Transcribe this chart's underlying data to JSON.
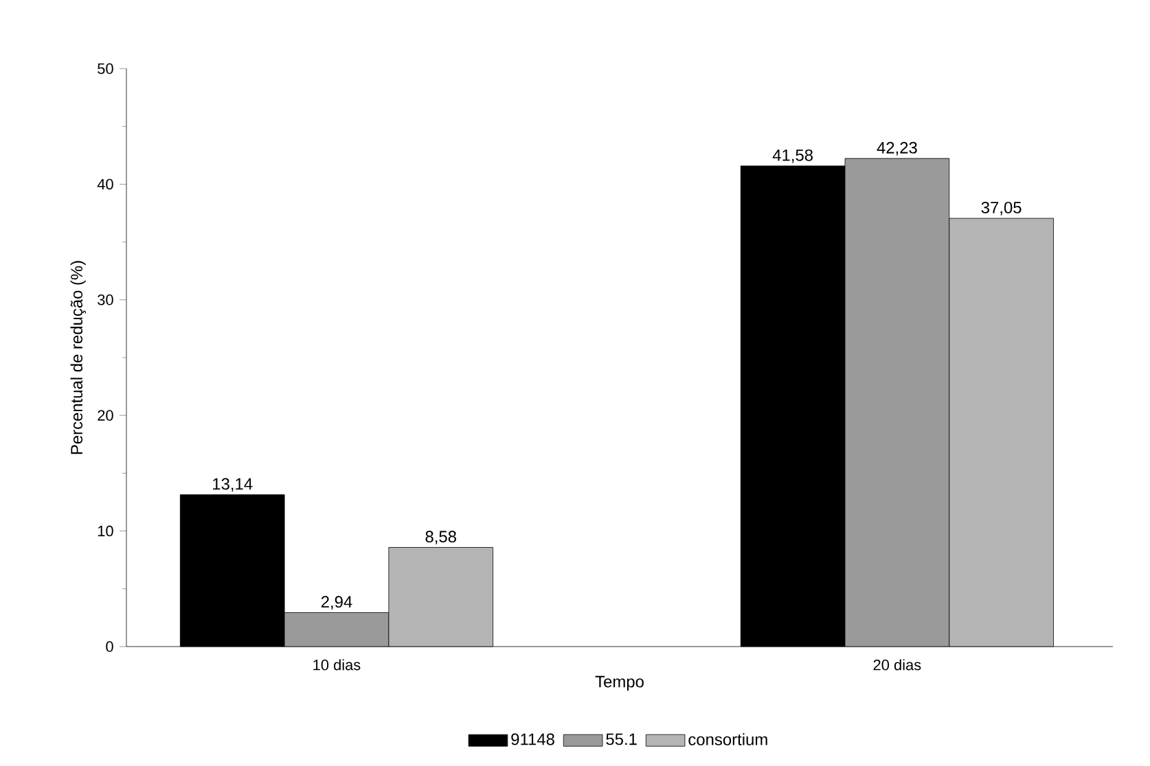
{
  "chart_data": {
    "type": "bar",
    "xlabel": "Tempo",
    "ylabel": "Percentual de redução (%)",
    "categories": [
      "10 dias",
      "20 dias"
    ],
    "series": [
      {
        "name": "91148",
        "color": "#000000",
        "values": [
          13.14,
          41.58
        ],
        "value_labels": [
          "13,14",
          "41,58"
        ]
      },
      {
        "name": "55.1",
        "color": "#9a9a9a",
        "values": [
          2.94,
          42.23
        ],
        "value_labels": [
          "2,94",
          "42,23"
        ]
      },
      {
        "name": "consortium",
        "color": "#b4b4b4",
        "values": [
          8.58,
          37.05
        ],
        "value_labels": [
          "8,58",
          "37,05"
        ]
      }
    ],
    "ylim": [
      0,
      50
    ],
    "yticks": [
      0,
      10,
      20,
      30,
      40,
      50
    ],
    "grid": false,
    "legend": "bottom"
  }
}
